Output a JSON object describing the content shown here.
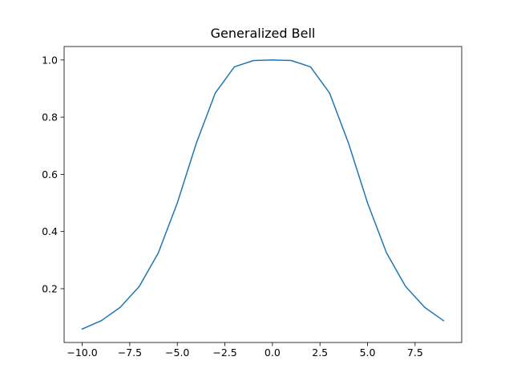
{
  "chart_data": {
    "type": "line",
    "title": "Generalized Bell",
    "xlabel": "",
    "ylabel": "",
    "x": [
      -10,
      -9,
      -8,
      -7,
      -6,
      -5,
      -4,
      -3,
      -2,
      -1,
      0,
      1,
      2,
      3,
      4,
      5,
      6,
      7,
      8,
      9
    ],
    "series": [
      {
        "values": [
          0.059,
          0.088,
          0.135,
          0.208,
          0.325,
          0.5,
          0.709,
          0.885,
          0.976,
          0.998,
          1.0,
          0.998,
          0.976,
          0.885,
          0.709,
          0.5,
          0.325,
          0.208,
          0.135,
          0.088
        ],
        "color": "#1f77b4"
      }
    ],
    "xlim": [
      -10.95,
      9.95
    ],
    "ylim": [
      0.0119,
      1.0471
    ],
    "xticks": [
      -10.0,
      -7.5,
      -5.0,
      -2.5,
      0.0,
      2.5,
      5.0,
      7.5
    ],
    "xtick_labels": [
      "−10.0",
      "−7.5",
      "−5.0",
      "−2.5",
      "0.0",
      "2.5",
      "5.0",
      "7.5"
    ],
    "yticks": [
      0.2,
      0.4,
      0.6,
      0.8,
      1.0
    ],
    "ytick_labels": [
      "0.2",
      "0.4",
      "0.6",
      "0.8",
      "1.0"
    ],
    "grid": false,
    "legend": "none"
  }
}
